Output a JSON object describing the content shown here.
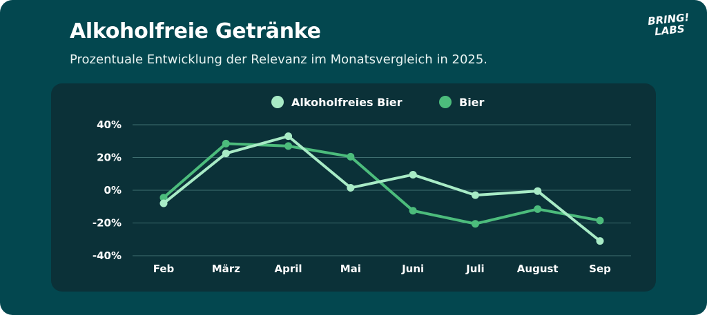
{
  "header": {
    "title": "Alkoholfreie Getränke",
    "subtitle": "Prozentuale Entwicklung der Relevanz im Monatsvergleich in 2025.",
    "logo_line1": "BRING!",
    "logo_line2": "LABS"
  },
  "colors": {
    "background": "#03474f",
    "panel": "#0b3138",
    "series_light": "#a8ebc6",
    "series_dark": "#4cbc7c",
    "grid": "#3f6e70"
  },
  "chart_data": {
    "type": "line",
    "title": "Alkoholfreie Getränke",
    "subtitle": "Prozentuale Entwicklung der Relevanz im Monatsvergleich in 2025.",
    "xlabel": "",
    "ylabel": "",
    "categories": [
      "Feb",
      "März",
      "April",
      "Mai",
      "Juni",
      "Juli",
      "August",
      "Sep"
    ],
    "ylim": [
      -40,
      40
    ],
    "yticks": [
      -40,
      -20,
      0,
      20,
      40
    ],
    "ytick_labels": [
      "-40%",
      "-20%",
      "0%",
      "20%",
      "40%"
    ],
    "grid": true,
    "legend_position": "top-center",
    "series": [
      {
        "name": "Alkoholfreies Bier",
        "color": "#a8ebc6",
        "values": [
          -8,
          22.5,
          33,
          1.5,
          9.5,
          -3,
          -0.5,
          -31
        ]
      },
      {
        "name": "Bier",
        "color": "#4cbc7c",
        "values": [
          -4.5,
          28.5,
          27,
          20.5,
          -12.5,
          -20.5,
          -11.5,
          -18.5
        ]
      }
    ]
  }
}
